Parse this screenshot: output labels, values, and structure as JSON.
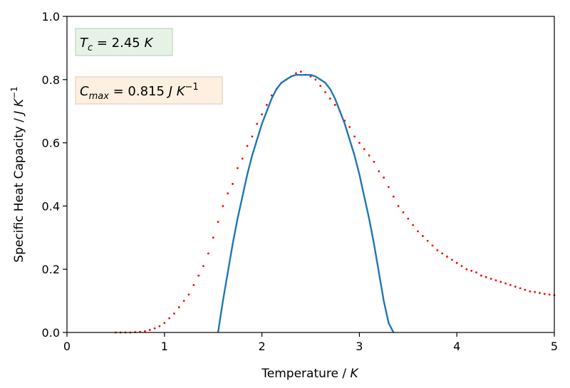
{
  "chart_data": {
    "type": "scatter",
    "xlabel_main": "Temperature / ",
    "xlabel_unit": "K",
    "ylabel_main": "Specific Heat Capacity / ",
    "ylabel_unit": "J K",
    "ylabel_exp": "−1",
    "xlim": [
      0,
      5
    ],
    "ylim": [
      0,
      1.0
    ],
    "xticks": [
      0,
      1,
      2,
      3,
      4,
      5
    ],
    "xtick_labels": [
      "0",
      "1",
      "2",
      "3",
      "4",
      "5"
    ],
    "yticks": [
      0,
      0.2,
      0.4,
      0.6,
      0.8,
      1.0
    ],
    "ytick_labels": [
      "0.0",
      "0.2",
      "0.4",
      "0.6",
      "0.8",
      "1.0"
    ],
    "grid": false,
    "annotations": [
      {
        "sym": "T",
        "sub": "c",
        "value": " = 2.45 ",
        "unit": "K",
        "unit_exp": "",
        "face": "#e6f2e6",
        "edge": "#c9dcc9"
      },
      {
        "sym": "C",
        "sub": "max",
        "value": " = 0.815 ",
        "unit": "J K",
        "unit_exp": "−1",
        "face": "#fdf0e1",
        "edge": "#e9d9c4"
      }
    ],
    "series": [
      {
        "kind": "scatter",
        "color": "#ff0000",
        "x": [
          0.5,
          0.55,
          0.6,
          0.65,
          0.7,
          0.75,
          0.8,
          0.85,
          0.9,
          0.95,
          1.0,
          1.05,
          1.1,
          1.15,
          1.2,
          1.25,
          1.3,
          1.35,
          1.4,
          1.45,
          1.5,
          1.55,
          1.6,
          1.65,
          1.7,
          1.75,
          1.8,
          1.85,
          1.9,
          1.95,
          2.0,
          2.05,
          2.1,
          2.15,
          2.2,
          2.25,
          2.3,
          2.35,
          2.4,
          2.45,
          2.5,
          2.55,
          2.6,
          2.65,
          2.7,
          2.75,
          2.8,
          2.85,
          2.9,
          2.95,
          3.0,
          3.05,
          3.1,
          3.15,
          3.2,
          3.25,
          3.3,
          3.35,
          3.4,
          3.45,
          3.5,
          3.55,
          3.6,
          3.65,
          3.7,
          3.75,
          3.8,
          3.85,
          3.9,
          3.95,
          4.0,
          4.05,
          4.1,
          4.15,
          4.2,
          4.25,
          4.3,
          4.35,
          4.4,
          4.45,
          4.5,
          4.55,
          4.6,
          4.65,
          4.7,
          4.75,
          4.8,
          4.85,
          4.9,
          4.95,
          5.0
        ],
        "y": [
          0.0,
          0.0,
          0.0,
          0.0,
          0.001,
          0.002,
          0.004,
          0.008,
          0.013,
          0.02,
          0.03,
          0.045,
          0.06,
          0.08,
          0.1,
          0.12,
          0.15,
          0.18,
          0.21,
          0.25,
          0.3,
          0.35,
          0.4,
          0.44,
          0.47,
          0.52,
          0.55,
          0.59,
          0.62,
          0.66,
          0.69,
          0.72,
          0.75,
          0.77,
          0.79,
          0.8,
          0.81,
          0.82,
          0.825,
          0.815,
          0.81,
          0.8,
          0.78,
          0.76,
          0.74,
          0.72,
          0.7,
          0.67,
          0.65,
          0.62,
          0.6,
          0.58,
          0.56,
          0.54,
          0.51,
          0.49,
          0.46,
          0.43,
          0.4,
          0.38,
          0.36,
          0.34,
          0.32,
          0.305,
          0.29,
          0.275,
          0.26,
          0.25,
          0.24,
          0.23,
          0.22,
          0.21,
          0.2,
          0.195,
          0.19,
          0.18,
          0.175,
          0.17,
          0.165,
          0.16,
          0.155,
          0.15,
          0.145,
          0.14,
          0.135,
          0.13,
          0.128,
          0.125,
          0.122,
          0.12,
          0.118
        ]
      },
      {
        "kind": "line",
        "color": "#1f77b4",
        "x": [
          1.55,
          1.6,
          1.65,
          1.7,
          1.75,
          1.8,
          1.85,
          1.9,
          1.95,
          2.0,
          2.05,
          2.1,
          2.15,
          2.2,
          2.25,
          2.3,
          2.35,
          2.4,
          2.45,
          2.5,
          2.55,
          2.6,
          2.65,
          2.7,
          2.75,
          2.8,
          2.85,
          2.9,
          2.95,
          3.0,
          3.05,
          3.1,
          3.15,
          3.2,
          3.25,
          3.3,
          3.35
        ],
        "y": [
          0.0,
          0.1,
          0.19,
          0.28,
          0.36,
          0.43,
          0.5,
          0.56,
          0.61,
          0.66,
          0.7,
          0.74,
          0.77,
          0.79,
          0.8,
          0.81,
          0.815,
          0.815,
          0.815,
          0.815,
          0.81,
          0.8,
          0.79,
          0.77,
          0.74,
          0.7,
          0.66,
          0.61,
          0.56,
          0.5,
          0.43,
          0.36,
          0.28,
          0.19,
          0.1,
          0.03,
          0.0
        ]
      }
    ]
  }
}
